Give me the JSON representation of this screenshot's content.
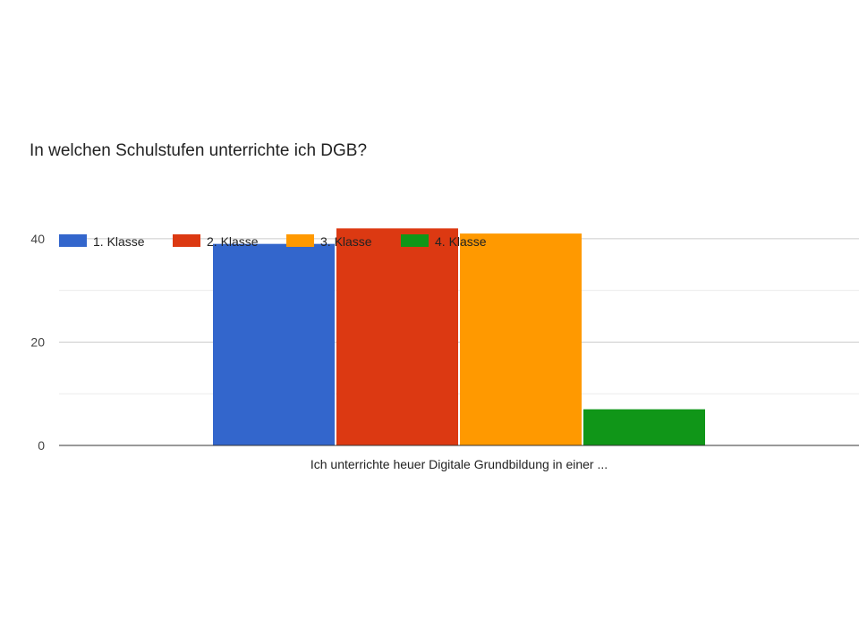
{
  "chart_data": {
    "type": "bar",
    "title": "In welchen Schulstufen unterrichte ich DGB?",
    "categories": [
      "Ich unterrichte heuer Digitale Grundbildung in einer ..."
    ],
    "series": [
      {
        "name": "1. Klasse",
        "values": [
          39
        ],
        "color": "#3366cc"
      },
      {
        "name": "2. Klasse",
        "values": [
          42
        ],
        "color": "#dc3912"
      },
      {
        "name": "3. Klasse",
        "values": [
          41
        ],
        "color": "#ff9900"
      },
      {
        "name": "4. Klasse",
        "values": [
          7
        ],
        "color": "#109618"
      }
    ],
    "ylim": [
      0,
      45
    ],
    "yticks": [
      0,
      20,
      40
    ],
    "grid": true,
    "legend": "top-left"
  }
}
